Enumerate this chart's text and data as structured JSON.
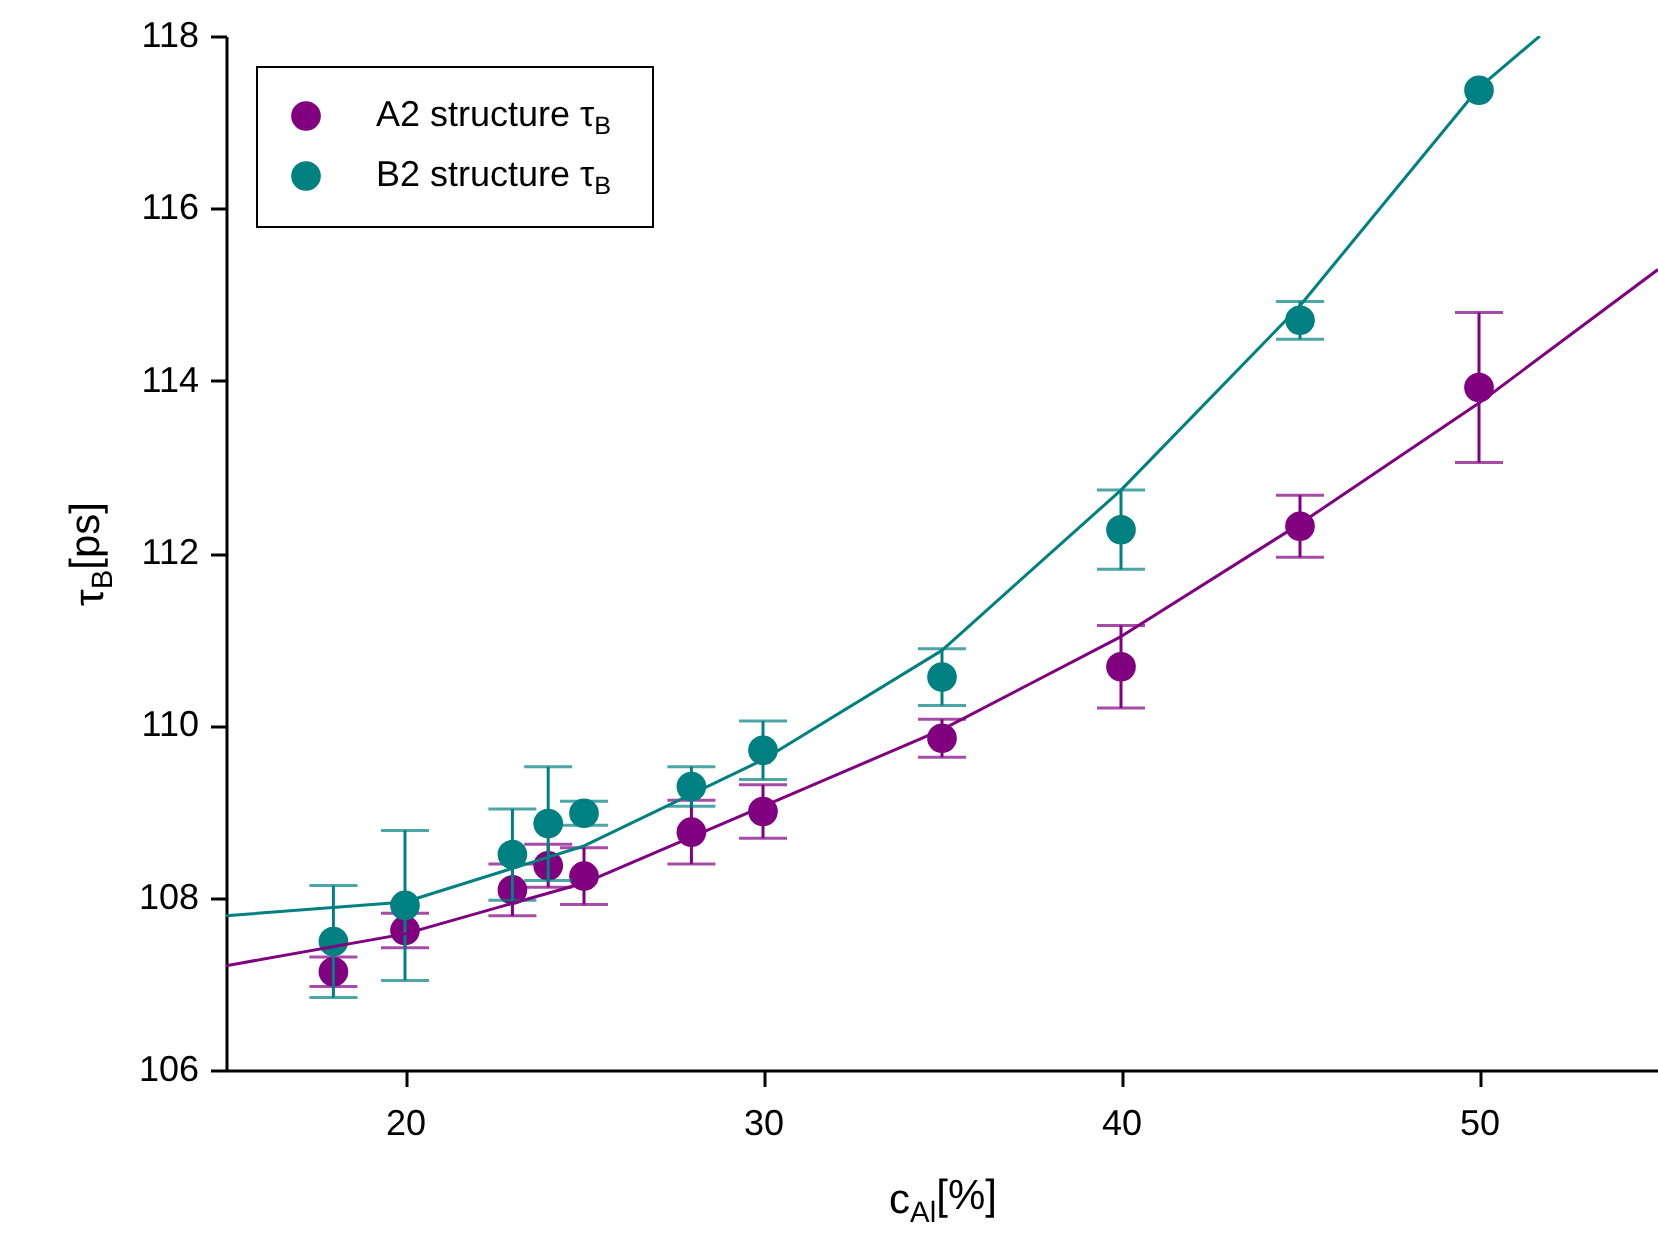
{
  "chart_data": {
    "type": "scatter",
    "xlabel": "c$_{Al}$[%]",
    "ylabel": "τ$_{B}$[ps]",
    "xlim": [
      15,
      55
    ],
    "xticks": [
      20,
      30,
      40,
      50
    ],
    "ylim": [
      106,
      118
    ],
    "yticks": [
      106,
      108,
      110,
      112,
      114,
      116,
      118
    ],
    "grid": false,
    "legend": "top left",
    "marker": "circle",
    "series": [
      {
        "name": "A2 structure τ$_{B}$",
        "color": "#800080",
        "x": [
          18,
          20,
          23,
          24,
          25,
          28,
          30,
          35,
          40,
          45,
          50
        ],
        "values": [
          107.14,
          107.62,
          108.09,
          108.37,
          108.25,
          108.76,
          109.0,
          109.85,
          110.68,
          112.31,
          113.92
        ],
        "errors": [
          0.17,
          0.2,
          0.3,
          0.25,
          0.33,
          0.37,
          0.31,
          0.22,
          0.48,
          0.36,
          0.87
        ]
      },
      {
        "name": "B2 structure τ$_{B}$",
        "color": "#008080",
        "x": [
          18,
          20,
          23,
          24,
          25,
          28,
          30,
          35,
          40,
          45,
          50
        ],
        "values": [
          107.49,
          107.91,
          108.5,
          108.86,
          108.98,
          109.29,
          109.71,
          110.56,
          112.27,
          114.7,
          117.37
        ],
        "errors": [
          0.65,
          0.87,
          0.53,
          0.66,
          0.14,
          0.23,
          0.34,
          0.33,
          0.46,
          0.22,
          null
        ]
      },
      {
        "type": "line",
        "marker": "none",
        "color": "#800080",
        "x": [
          15,
          20,
          25,
          30,
          35,
          40,
          45,
          50,
          55
        ],
        "values": [
          107.21,
          107.58,
          108.17,
          109.06,
          109.95,
          111.03,
          112.34,
          113.74,
          115.29
        ]
      },
      {
        "type": "line",
        "marker": "none",
        "color": "#008080",
        "x": [
          15,
          20,
          25,
          30,
          35,
          40,
          45,
          50,
          51.7
        ],
        "values": [
          107.79,
          107.95,
          108.6,
          109.6,
          110.87,
          112.73,
          114.87,
          117.4,
          118
        ]
      }
    ]
  }
}
